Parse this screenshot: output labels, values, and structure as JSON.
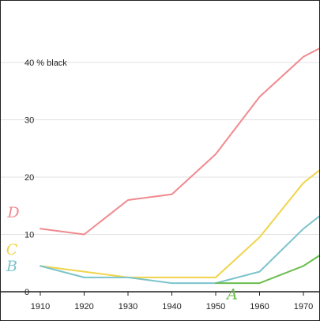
{
  "chart_data": {
    "type": "line",
    "x": [
      1910,
      1920,
      1930,
      1940,
      1950,
      1960,
      1970,
      1975
    ],
    "xticks": [
      "1910",
      "1920",
      "1930",
      "1940",
      "1950",
      "1960",
      "1970"
    ],
    "xlim": [
      1910,
      1975
    ],
    "ylim": [
      0,
      43
    ],
    "yticks": [
      {
        "value": 0,
        "label": "0"
      },
      {
        "value": 10,
        "label": "10"
      },
      {
        "value": 20,
        "label": "20"
      },
      {
        "value": 30,
        "label": "30"
      },
      {
        "value": 40,
        "label": "40 % black"
      }
    ],
    "grid": true,
    "series": [
      {
        "name": "D",
        "color": "#f08a8f",
        "values": [
          11,
          10,
          16,
          17,
          24,
          34,
          41,
          43
        ]
      },
      {
        "name": "C",
        "color": "#f0d44a",
        "values": [
          4.5,
          3.5,
          2.5,
          2.5,
          2.5,
          9.5,
          19,
          22
        ]
      },
      {
        "name": "B",
        "color": "#7cc4cc",
        "values": [
          4.5,
          2.5,
          2.5,
          1.5,
          1.5,
          3.5,
          11,
          14
        ]
      },
      {
        "name": "A",
        "color": "#6bbd4e",
        "values": [
          null,
          null,
          null,
          null,
          1.5,
          1.5,
          4.5,
          7
        ]
      }
    ]
  }
}
